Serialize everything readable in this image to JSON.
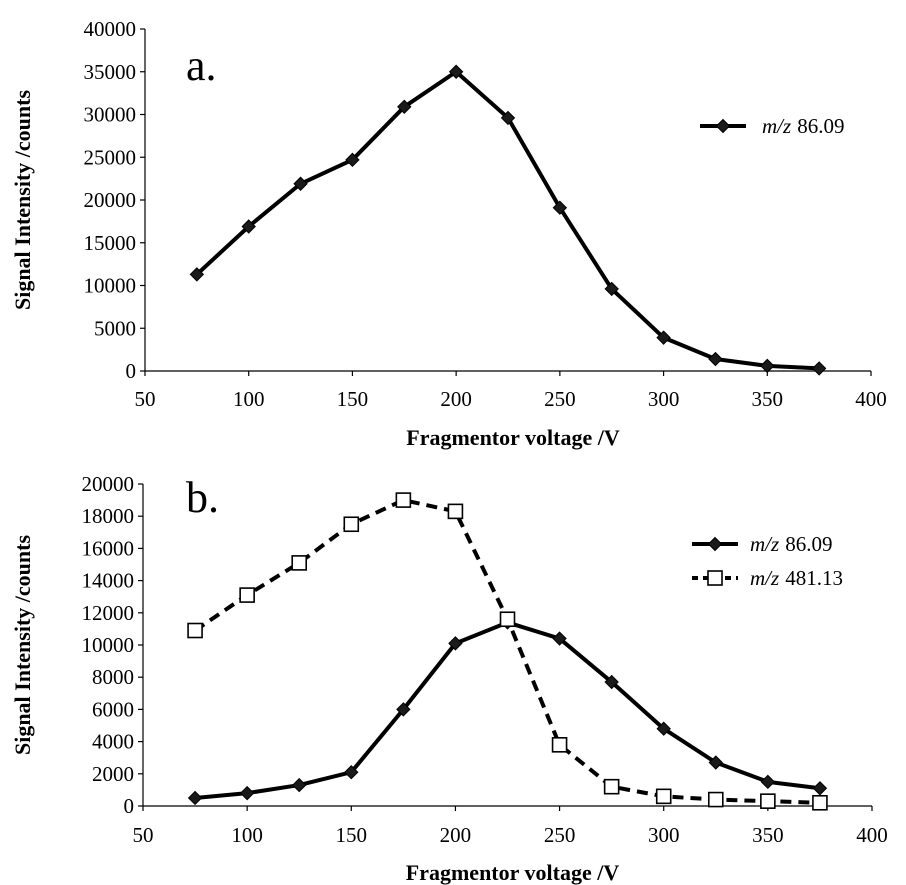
{
  "chart_data": [
    {
      "type": "line",
      "panel_label": "a.",
      "xlabel": "Fragmentor voltage /V",
      "ylabel": "Signal Intensity /counts",
      "xlim": [
        50,
        400
      ],
      "ylim": [
        0,
        40000
      ],
      "xticks": [
        50,
        100,
        150,
        200,
        250,
        300,
        350,
        400
      ],
      "yticks": [
        0,
        5000,
        10000,
        15000,
        20000,
        25000,
        30000,
        35000,
        40000
      ],
      "grid": false,
      "legend_position": "top-right",
      "series": [
        {
          "name_prefix": "m/z",
          "name_value": "86.09",
          "marker": "diamond",
          "line_style": "solid",
          "color": "#000000",
          "x": [
            75,
            100,
            125,
            150,
            175,
            200,
            225,
            250,
            275,
            300,
            325,
            350,
            375
          ],
          "values": [
            11300,
            16900,
            21900,
            24700,
            30900,
            35000,
            29600,
            19100,
            9600,
            3900,
            1400,
            600,
            300
          ]
        }
      ]
    },
    {
      "type": "line",
      "panel_label": "b.",
      "xlabel": "Fragmentor voltage /V",
      "ylabel": "Signal Intensity /counts",
      "xlim": [
        50,
        400
      ],
      "ylim": [
        0,
        20000
      ],
      "xticks": [
        50,
        100,
        150,
        200,
        250,
        300,
        350,
        400
      ],
      "yticks": [
        0,
        2000,
        4000,
        6000,
        8000,
        10000,
        12000,
        14000,
        16000,
        18000,
        20000
      ],
      "grid": false,
      "legend_position": "top-right",
      "series": [
        {
          "name_prefix": "m/z",
          "name_value": "86.09",
          "marker": "diamond",
          "line_style": "solid",
          "color": "#000000",
          "x": [
            75,
            100,
            125,
            150,
            175,
            200,
            225,
            250,
            275,
            300,
            325,
            350,
            375
          ],
          "values": [
            500,
            800,
            1300,
            2100,
            6000,
            10100,
            11400,
            10400,
            7700,
            4800,
            2700,
            1500,
            1100
          ]
        },
        {
          "name_prefix": "m/z",
          "name_value": "481.13",
          "marker": "open-square",
          "line_style": "dashed",
          "color": "#000000",
          "x": [
            75,
            100,
            125,
            150,
            175,
            200,
            225,
            250,
            275,
            300,
            325,
            350,
            375
          ],
          "values": [
            10900,
            13100,
            15100,
            17500,
            19000,
            18300,
            11600,
            3800,
            1200,
            600,
            400,
            300,
            200
          ]
        }
      ]
    }
  ]
}
